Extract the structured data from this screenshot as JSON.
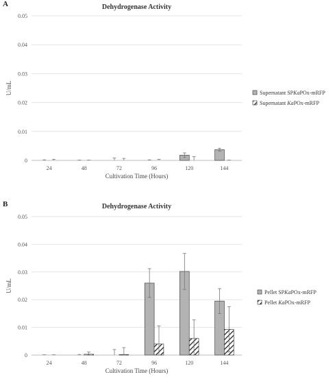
{
  "figure": {
    "panel_a_label": "A",
    "panel_b_label": "B"
  },
  "chart_data": [
    {
      "type": "bar",
      "title": "Dehydrogenase Activity",
      "xlabel": "Cultivation Time (Hours)",
      "ylabel": "U/mL",
      "ylim": [
        0,
        0.05
      ],
      "yticks": [
        "0",
        "0.01",
        "0.02",
        "0.03",
        "0.04",
        "0.05"
      ],
      "categories": [
        "24",
        "48",
        "72",
        "96",
        "120",
        "144"
      ],
      "grid": true,
      "legend_position": "right",
      "series": [
        {
          "name": "Supernatant SPKaPOx-mRFP",
          "name_parts": [
            "Supernatant SP",
            "Ka",
            "POx-mRFP"
          ],
          "values": [
            0.0,
            0.0,
            0.0,
            0.0,
            0.0018,
            0.0037
          ],
          "errors": [
            0.0002,
            0.0001,
            0.0008,
            0.0002,
            0.0008,
            0.0005
          ],
          "pattern": "solid",
          "color": "#b3b3b3"
        },
        {
          "name": "Supernatant KaPOx-mRFP",
          "name_parts": [
            "Supernatant ",
            "Ka",
            "POx-mRFP"
          ],
          "values": [
            0.0,
            0.0,
            0.0,
            0.0,
            0.0,
            0.0
          ],
          "errors": [
            0.0004,
            0.0001,
            0.0007,
            0.0004,
            0.0013,
            0.0001
          ],
          "pattern": "hatched",
          "color": "#222222"
        }
      ]
    },
    {
      "type": "bar",
      "title": "Dehydrogenase Activity",
      "xlabel": "Cultivation Time (Hours)",
      "ylabel": "U/mL",
      "ylim": [
        0,
        0.05
      ],
      "yticks": [
        "0",
        "0.01",
        "0.02",
        "0.03",
        "0.04",
        "0.05"
      ],
      "categories": [
        "24",
        "48",
        "72",
        "96",
        "120",
        "144"
      ],
      "grid": true,
      "legend_position": "right",
      "series": [
        {
          "name": "Pellet SPKaPOx-mRFP",
          "name_parts": [
            "Pellet SP",
            "Ka",
            "POx-mRFP"
          ],
          "values": [
            0.0,
            0.0,
            0.0,
            0.026,
            0.0302,
            0.0195
          ],
          "errors": [
            0.0001,
            0.0002,
            0.002,
            0.0052,
            0.0065,
            0.0045
          ],
          "pattern": "solid",
          "color": "#b3b3b3"
        },
        {
          "name": "Pellet KaPOx-mRFP",
          "name_parts": [
            "Pellet ",
            "Ka",
            "POx-mRFP"
          ],
          "values": [
            0.0,
            0.0003,
            0.0002,
            0.004,
            0.006,
            0.0093
          ],
          "errors": [
            0.0001,
            0.0008,
            0.0025,
            0.0065,
            0.0067,
            0.0082
          ],
          "pattern": "hatched",
          "color": "#222222"
        }
      ]
    }
  ]
}
